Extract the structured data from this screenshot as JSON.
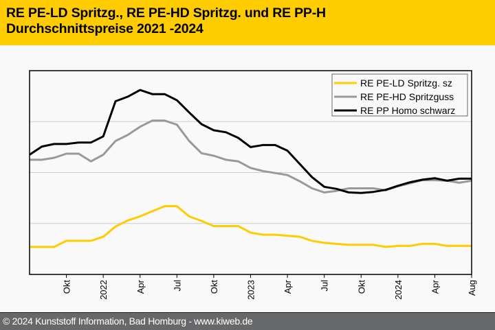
{
  "header": {
    "title_line1": "RE PE-LD Spritzg., RE PE-HD Spritzg. und RE PP-H",
    "title_line2": "Durchschnittspreise 2021 -2024",
    "background_color": "#ffcc00"
  },
  "footer": {
    "text": "© 2024 Kunststoff Information, Bad Homburg - www.kiweb.de"
  },
  "chart_data": {
    "type": "line",
    "title": "RE PE-LD Spritzg., RE PE-HD Spritzg. und RE PP-H Durchschnittspreise 2021 -2024",
    "xlabel": "",
    "ylabel": "",
    "y_unit_note": "No y-axis labels shown; values are relative index in gridline steps (0 = bottom axis, 4 = top).",
    "ylim": [
      0,
      4
    ],
    "y_gridlines": [
      1,
      2,
      3
    ],
    "grid": true,
    "legend_position": "top-right",
    "x": [
      "2021-07",
      "2021-08",
      "2021-09",
      "2021-10",
      "2021-11",
      "2021-12",
      "2022-01",
      "2022-02",
      "2022-03",
      "2022-04",
      "2022-05",
      "2022-06",
      "2022-07",
      "2022-08",
      "2022-09",
      "2022-10",
      "2022-11",
      "2022-12",
      "2023-01",
      "2023-02",
      "2023-03",
      "2023-04",
      "2023-05",
      "2023-06",
      "2023-07",
      "2023-08",
      "2023-09",
      "2023-10",
      "2023-11",
      "2023-12",
      "2024-01",
      "2024-02",
      "2024-03",
      "2024-04",
      "2024-05",
      "2024-06",
      "2024-07"
    ],
    "x_ticks": [
      {
        "label": "Okt",
        "month_index": 3
      },
      {
        "label": "2022",
        "month_index": 6
      },
      {
        "label": "Apr",
        "month_index": 9
      },
      {
        "label": "Jul",
        "month_index": 12
      },
      {
        "label": "Okt",
        "month_index": 15
      },
      {
        "label": "2023",
        "month_index": 18
      },
      {
        "label": "Apr",
        "month_index": 21
      },
      {
        "label": "Jul",
        "month_index": 24
      },
      {
        "label": "Okt",
        "month_index": 27
      },
      {
        "label": "2024",
        "month_index": 30
      },
      {
        "label": "Apr",
        "month_index": 33
      },
      {
        "label": "Aug",
        "month_index": 36
      }
    ],
    "series": [
      {
        "name": "RE PE-LD Spritzg. sz",
        "color": "#ffcc00",
        "values": [
          0.54,
          0.54,
          0.54,
          0.66,
          0.66,
          0.66,
          0.74,
          0.94,
          1.06,
          1.14,
          1.24,
          1.34,
          1.34,
          1.14,
          1.05,
          0.95,
          0.95,
          0.95,
          0.82,
          0.78,
          0.78,
          0.76,
          0.74,
          0.66,
          0.62,
          0.6,
          0.58,
          0.58,
          0.58,
          0.54,
          0.56,
          0.56,
          0.6,
          0.6,
          0.56,
          0.56,
          0.56
        ]
      },
      {
        "name": "RE PE-HD Spritzguss",
        "color": "#999999",
        "values": [
          2.25,
          2.25,
          2.29,
          2.37,
          2.37,
          2.22,
          2.35,
          2.62,
          2.74,
          2.9,
          3.02,
          3.02,
          2.94,
          2.62,
          2.38,
          2.33,
          2.25,
          2.22,
          2.09,
          2.03,
          1.99,
          1.95,
          1.83,
          1.69,
          1.61,
          1.64,
          1.69,
          1.69,
          1.69,
          1.65,
          1.73,
          1.79,
          1.85,
          1.85,
          1.84,
          1.8,
          1.84
        ]
      },
      {
        "name": "RE PP Homo schwarz",
        "color": "#000000",
        "values": [
          2.35,
          2.51,
          2.56,
          2.56,
          2.59,
          2.59,
          2.71,
          3.4,
          3.49,
          3.62,
          3.54,
          3.54,
          3.42,
          3.18,
          2.95,
          2.83,
          2.79,
          2.68,
          2.5,
          2.54,
          2.54,
          2.43,
          2.17,
          1.91,
          1.72,
          1.68,
          1.61,
          1.6,
          1.62,
          1.66,
          1.74,
          1.81,
          1.86,
          1.89,
          1.84,
          1.88,
          1.88
        ]
      }
    ]
  }
}
